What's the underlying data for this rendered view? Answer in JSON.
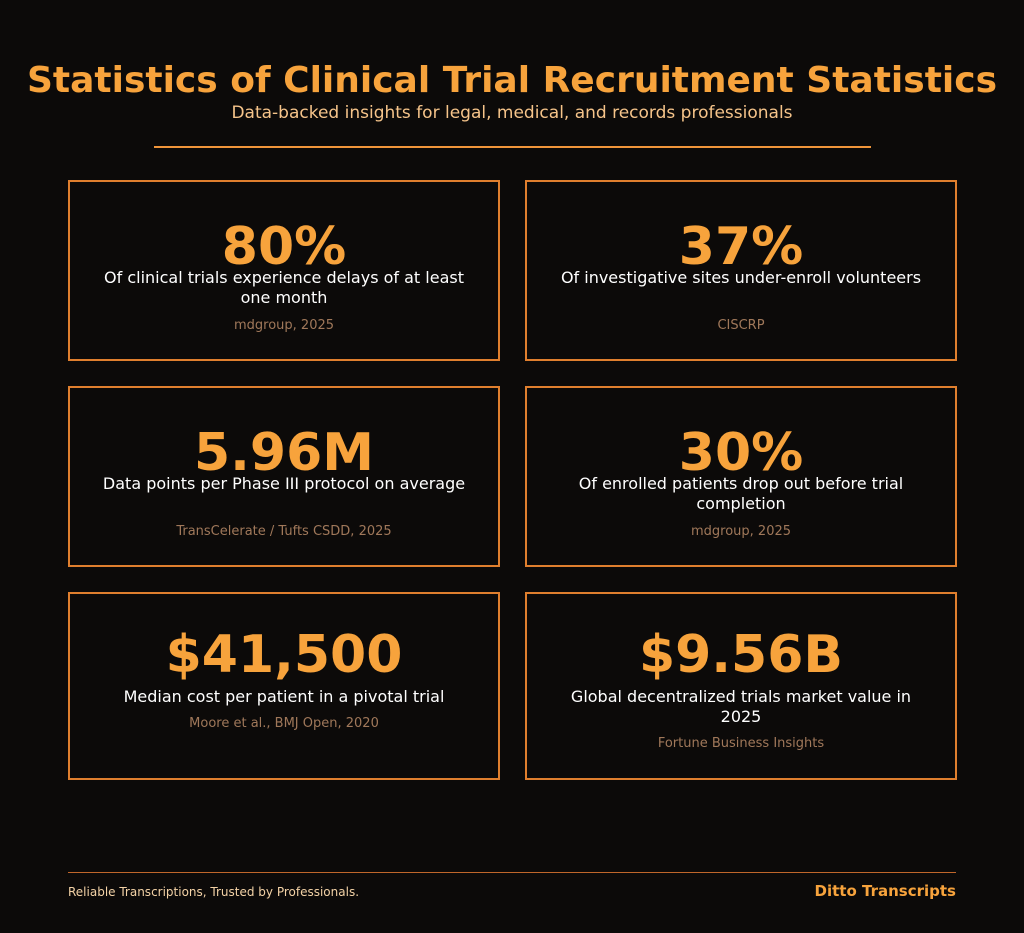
{
  "header": {
    "title": "Statistics of Clinical Trial Recruitment Statistics",
    "subtitle": "Data-backed insights for legal, medical, and records professionals"
  },
  "stats": [
    {
      "value": "80%",
      "description": "Of clinical trials experience delays of at least one month",
      "source": "mdgroup, 2025"
    },
    {
      "value": "37%",
      "description": "Of investigative sites under-enroll volunteers",
      "source": "CISCRP"
    },
    {
      "value": "5.96M",
      "description": "Data points per Phase III protocol on average",
      "source": "TransCelerate / Tufts CSDD, 2025"
    },
    {
      "value": "30%",
      "description": "Of enrolled patients drop out before trial completion",
      "source": "mdgroup, 2025"
    },
    {
      "value": "$41,500",
      "description": "Median cost per patient in a pivotal trial",
      "source": "Moore et al., BMJ Open, 2020"
    },
    {
      "value": "$9.56B",
      "description": "Global decentralized trials market value in 2025",
      "source": "Fortune Business Insights"
    }
  ],
  "footer": {
    "tagline": "Reliable Transcriptions, Trusted by Professionals.",
    "brand": "Ditto Transcripts"
  },
  "colors": {
    "background": "#0c0a09",
    "accent": "#f7a33c",
    "border": "#e07f2e",
    "source_text": "#a0785a"
  }
}
